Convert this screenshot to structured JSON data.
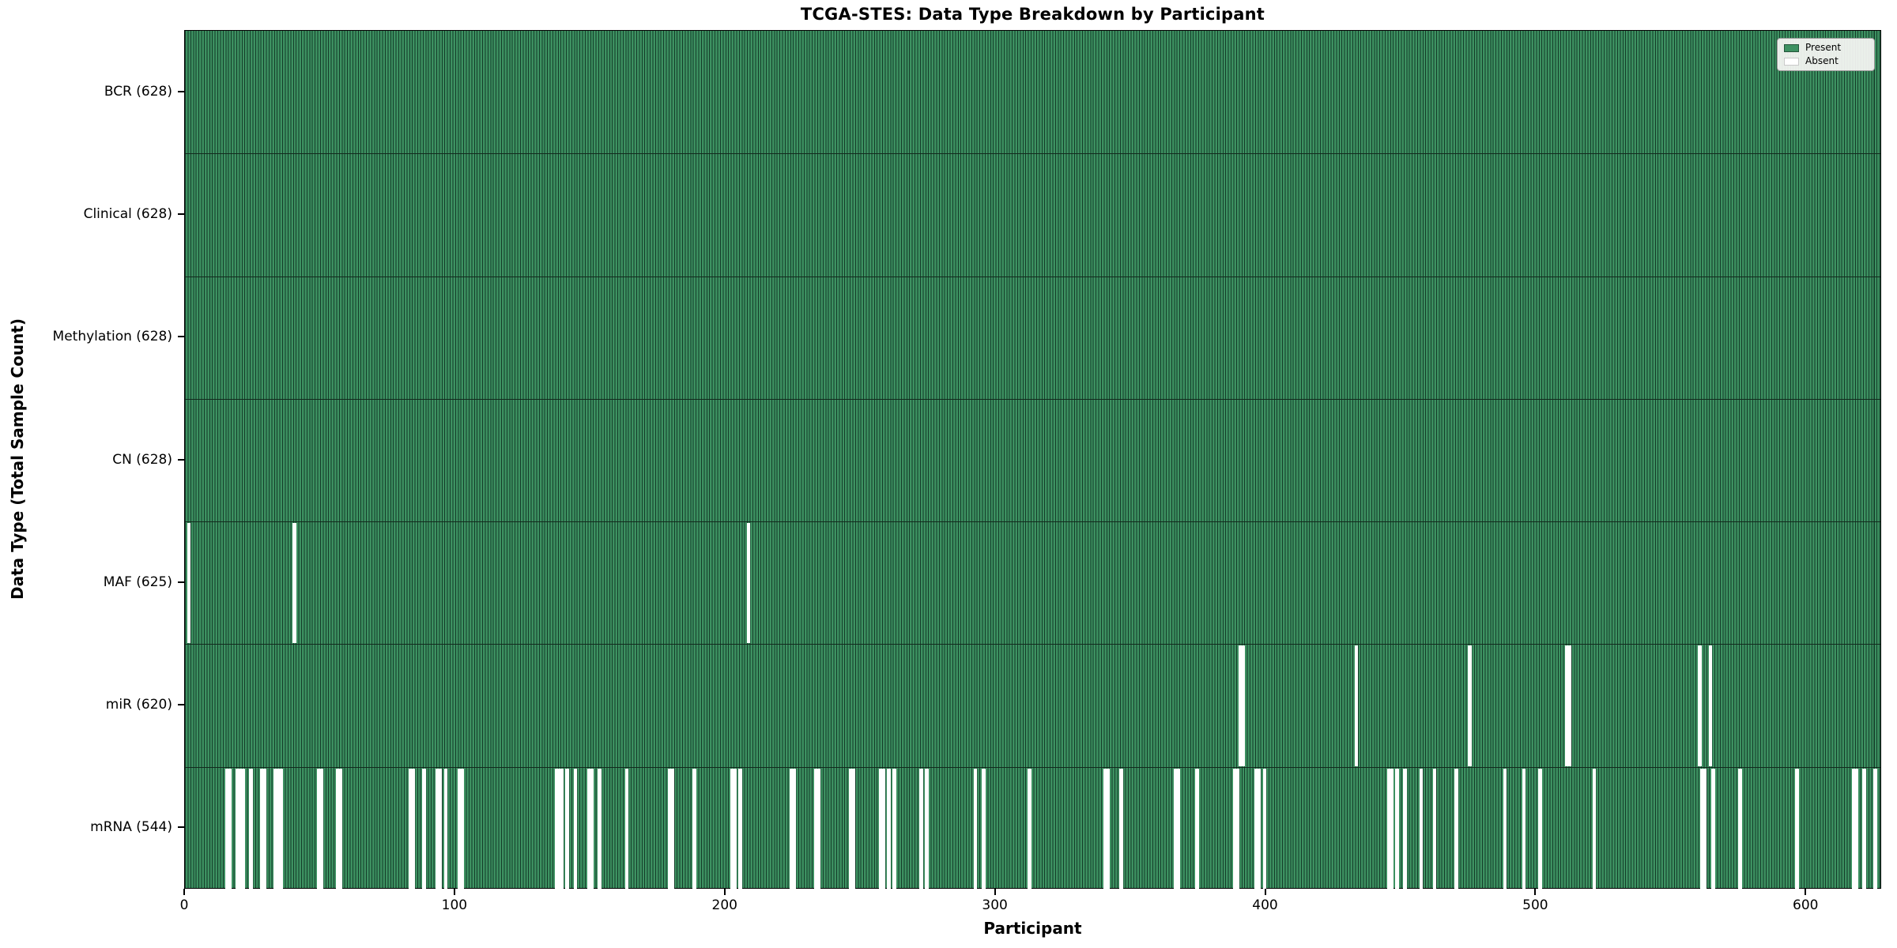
{
  "title": "TCGA-STES: Data Type Breakdown by Participant",
  "xlabel": "Participant",
  "ylabel": "Data Type (Total Sample Count)",
  "legend": {
    "present_label": "Present",
    "absent_label": "Absent"
  },
  "colors": {
    "present": "#3d9161",
    "bar_edge": "#143c29",
    "absent": "#ffffff",
    "row_separator": "#122a1d",
    "legend_bg": "#f9f9f6",
    "legend_border": "#9a9a9a"
  },
  "chart_data": {
    "type": "heatmap",
    "title": "TCGA-STES: Data Type Breakdown by Participant",
    "xlabel": "Participant",
    "ylabel": "Data Type (Total Sample Count)",
    "legend_entries": [
      "Present",
      "Absent"
    ],
    "legend_position": "upper right",
    "n_participants": 628,
    "x_axis": {
      "min": 0,
      "max": 628,
      "ticks": [
        0,
        100,
        200,
        300,
        400,
        500,
        600
      ]
    },
    "rows": [
      {
        "name": "BCR",
        "label": "BCR (628)",
        "present_count": 628,
        "absent_participants": []
      },
      {
        "name": "Clinical",
        "label": "Clinical (628)",
        "present_count": 628,
        "absent_participants": []
      },
      {
        "name": "Methylation",
        "label": "Methylation (628)",
        "present_count": 628,
        "absent_participants": []
      },
      {
        "name": "CN",
        "label": "CN (628)",
        "present_count": 628,
        "absent_participants": []
      },
      {
        "name": "MAF",
        "label": "MAF (625)",
        "present_count": 625,
        "absent_participants": [
          1,
          40,
          208
        ]
      },
      {
        "name": "miR",
        "label": "miR (620)",
        "present_count": 620,
        "absent_participants": [
          390,
          391,
          433,
          475,
          511,
          512,
          560,
          564
        ]
      },
      {
        "name": "mRNA",
        "label": "mRNA (544)",
        "present_count": 544,
        "absent_participants": [
          15,
          16,
          19,
          20,
          21,
          24,
          28,
          29,
          33,
          34,
          35,
          49,
          50,
          56,
          57,
          83,
          84,
          88,
          93,
          94,
          96,
          101,
          102,
          137,
          138,
          139,
          141,
          144,
          149,
          150,
          153,
          163,
          179,
          180,
          188,
          202,
          203,
          205,
          224,
          225,
          233,
          234,
          246,
          247,
          257,
          258,
          260,
          262,
          272,
          274,
          292,
          295,
          312,
          340,
          341,
          346,
          366,
          367,
          374,
          388,
          389,
          396,
          397,
          399,
          445,
          446,
          448,
          451,
          457,
          462,
          470,
          488,
          495,
          501,
          521,
          561,
          562,
          565,
          575,
          596,
          617,
          618,
          621,
          625
        ]
      }
    ]
  }
}
